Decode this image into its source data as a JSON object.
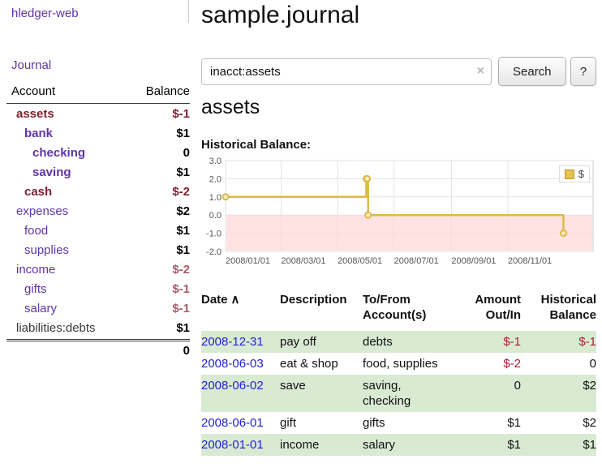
{
  "app": {
    "brand": "hledger-web",
    "nav_journal": "Journal"
  },
  "colors": {
    "link_purple": "#5f35a5",
    "negative_strong": "#7f1f2f",
    "negative_soft": "#a85c6c",
    "table_negative": "#a11d33",
    "date_link_blue": "#2222cc",
    "row_shade_green": "#d9ead3",
    "chart_line_gold": "#ddba45",
    "chart_negative_region": "#ffd4d4"
  },
  "sidebar": {
    "header": {
      "account": "Account",
      "balance": "Balance"
    },
    "accounts": [
      {
        "name": "assets",
        "balance": "$-1",
        "indent": 0,
        "name_class": "neg",
        "balance_class": "neg"
      },
      {
        "name": "bank",
        "balance": "$1",
        "indent": 1,
        "name_class": "lnk-b",
        "balance_class": ""
      },
      {
        "name": "checking",
        "balance": "0",
        "indent": 2,
        "name_class": "lnk-b",
        "balance_class": ""
      },
      {
        "name": "saving",
        "balance": "$1",
        "indent": 2,
        "name_class": "lnk-b",
        "balance_class": ""
      },
      {
        "name": "cash",
        "balance": "$-2",
        "indent": 1,
        "name_class": "neg",
        "balance_class": "neg"
      },
      {
        "name": "expenses",
        "balance": "$2",
        "indent": 0,
        "name_class": "lnk",
        "balance_class": ""
      },
      {
        "name": "food",
        "balance": "$1",
        "indent": 1,
        "name_class": "lnk",
        "balance_class": ""
      },
      {
        "name": "supplies",
        "balance": "$1",
        "indent": 1,
        "name_class": "lnk",
        "balance_class": ""
      },
      {
        "name": "income",
        "balance": "$-2",
        "indent": 0,
        "name_class": "lnk",
        "balance_class": "neg-soft"
      },
      {
        "name": "gifts",
        "balance": "$-1",
        "indent": 1,
        "name_class": "lnk",
        "balance_class": "neg-soft"
      },
      {
        "name": "salary",
        "balance": "$-1",
        "indent": 1,
        "name_class": "lnk",
        "balance_class": "neg-soft"
      },
      {
        "name": "liabilities:debts",
        "balance": "$1",
        "indent": 0,
        "name_class": "plain",
        "balance_class": ""
      }
    ],
    "total": "0"
  },
  "header": {
    "title": "sample.journal"
  },
  "search": {
    "value": "inacct:assets",
    "clear_icon": "×",
    "button_label": "Search",
    "help_label": "?"
  },
  "account_page": {
    "title": "assets",
    "chart_label": "Historical Balance:"
  },
  "chart_data": {
    "type": "line",
    "title": "Historical Balance",
    "step": true,
    "series": [
      {
        "name": "$",
        "points": [
          [
            "2008-01-01",
            1
          ],
          [
            "2008-06-01",
            2
          ],
          [
            "2008-06-02",
            2
          ],
          [
            "2008-06-03",
            0
          ],
          [
            "2008-12-31",
            -1
          ]
        ]
      }
    ],
    "ylim": [
      -2,
      3
    ],
    "yticks": [
      3.0,
      2.0,
      1.0,
      0.0,
      -1.0,
      -2.0
    ],
    "xticks": [
      "2008/01/01",
      "2008/03/01",
      "2008/05/01",
      "2008/07/01",
      "2008/09/01",
      "2008/11/01"
    ],
    "x_domain": [
      "2008-01-01",
      "2009-02-01"
    ],
    "grid": true,
    "legend": {
      "label": "$",
      "position": "top-right"
    },
    "negative_region_below": 0
  },
  "register": {
    "sort_indicator": "∧",
    "columns": [
      {
        "lines": [
          "Date"
        ],
        "sort": true,
        "align": "left",
        "cls": "date"
      },
      {
        "lines": [
          "Description"
        ],
        "align": "left",
        "cls": "desc"
      },
      {
        "lines": [
          "To/From",
          "Account(s)"
        ],
        "align": "left",
        "cls": "acct"
      },
      {
        "lines": [
          "Amount",
          "Out/In"
        ],
        "align": "right",
        "cls": "amt"
      },
      {
        "lines": [
          "Historical",
          "Balance"
        ],
        "align": "right",
        "cls": "bal"
      }
    ],
    "rows": [
      {
        "date": "2008-12-31",
        "description": "pay off",
        "accounts": "debts",
        "amount": "$-1",
        "amount_negative": true,
        "balance": "$-1",
        "balance_negative": true,
        "shaded": true
      },
      {
        "date": "2008-06-03",
        "description": "eat & shop",
        "accounts": "food, supplies",
        "amount": "$-2",
        "amount_negative": true,
        "balance": "0",
        "balance_negative": false,
        "shaded": false
      },
      {
        "date": "2008-06-02",
        "description": "save",
        "accounts": "saving, checking",
        "amount": "0",
        "amount_negative": false,
        "balance": "$2",
        "balance_negative": false,
        "shaded": true
      },
      {
        "date": "2008-06-01",
        "description": "gift",
        "accounts": "gifts",
        "amount": "$1",
        "amount_negative": false,
        "balance": "$2",
        "balance_negative": false,
        "shaded": false
      },
      {
        "date": "2008-01-01",
        "description": "income",
        "accounts": "salary",
        "amount": "$1",
        "amount_negative": false,
        "balance": "$1",
        "balance_negative": false,
        "shaded": true
      }
    ]
  }
}
